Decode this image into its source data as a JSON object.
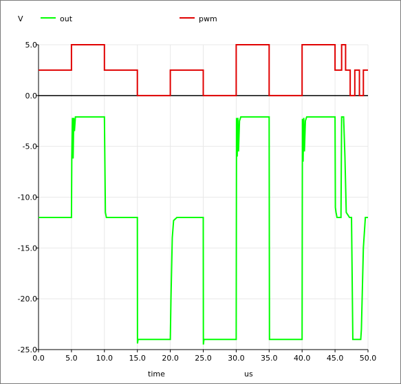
{
  "chart_data": {
    "type": "line",
    "ylabel": "V",
    "xlabel": "time",
    "xunit": "us",
    "xlim": [
      0,
      50
    ],
    "ylim": [
      -25,
      5
    ],
    "xticks": [
      "0.0",
      "5.0",
      "10.0",
      "15.0",
      "20.0",
      "25.0",
      "30.0",
      "35.0",
      "40.0",
      "45.0",
      "50.0"
    ],
    "yticks": [
      "5.0",
      "0.0",
      "-5.0",
      "-10.0",
      "-15.0",
      "-20.0",
      "-25.0"
    ],
    "ytick_values": [
      5,
      0,
      -5,
      -10,
      -15,
      -20,
      -25
    ],
    "grid": true,
    "legend_position": "top",
    "series": [
      {
        "name": "out",
        "color": "#00ff00",
        "x": [
          0,
          5,
          5.05,
          5.15,
          5.25,
          5.35,
          5.45,
          5.6,
          10,
          10.15,
          10.3,
          15,
          15.02,
          15.1,
          20,
          20.1,
          20.3,
          20.5,
          21,
          25,
          25.02,
          25.1,
          30,
          30.05,
          30.15,
          30.25,
          30.35,
          30.5,
          30.7,
          35,
          35.05,
          40,
          40.05,
          40.15,
          40.25,
          40.35,
          40.5,
          40.7,
          45,
          45.05,
          45.15,
          45.3,
          45.5,
          45.9,
          46.0,
          46.05,
          46.1,
          46.3,
          46.5,
          46.7,
          47.0,
          47.2,
          47.5,
          47.7,
          48.0,
          48.1,
          48.9,
          49.0,
          49.3,
          49.6,
          50
        ],
        "y": [
          -12,
          -12,
          -6,
          -2.2,
          -6.2,
          -2.2,
          -3.5,
          -2.1,
          -2.1,
          -11.5,
          -12,
          -12,
          -24.4,
          -24,
          -24,
          -20,
          -14,
          -12.3,
          -12,
          -12,
          -24.5,
          -24,
          -24,
          -2.2,
          -6,
          -2.2,
          -5.5,
          -2.5,
          -2.1,
          -2.1,
          -24,
          -24,
          -2.3,
          -6.5,
          -2.2,
          -5.5,
          -2.5,
          -2.1,
          -2.1,
          -11,
          -11.5,
          -12,
          -12,
          -12,
          -2.1,
          -2.1,
          -2.1,
          -2.1,
          -6,
          -11.5,
          -11.8,
          -12,
          -12,
          -24,
          -24,
          -24,
          -24,
          -23,
          -15,
          -12,
          -12
        ]
      },
      {
        "name": "pwm",
        "color": "#e00000",
        "x": [
          0,
          5,
          5,
          10,
          10,
          15,
          15,
          20,
          20,
          25,
          25,
          30,
          30,
          35,
          35,
          40,
          40,
          45,
          45,
          46,
          46,
          46.6,
          46.6,
          47.3,
          47.3,
          48,
          48,
          48.7,
          48.7,
          49.3,
          49.3,
          50
        ],
        "y": [
          2.5,
          2.5,
          5,
          5,
          2.5,
          2.5,
          0,
          0,
          2.5,
          2.5,
          0,
          0,
          5,
          5,
          0,
          0,
          5,
          5,
          2.5,
          2.5,
          5,
          5,
          2.5,
          2.5,
          0,
          0,
          2.5,
          2.5,
          0,
          0,
          2.5,
          2.5
        ]
      }
    ]
  }
}
